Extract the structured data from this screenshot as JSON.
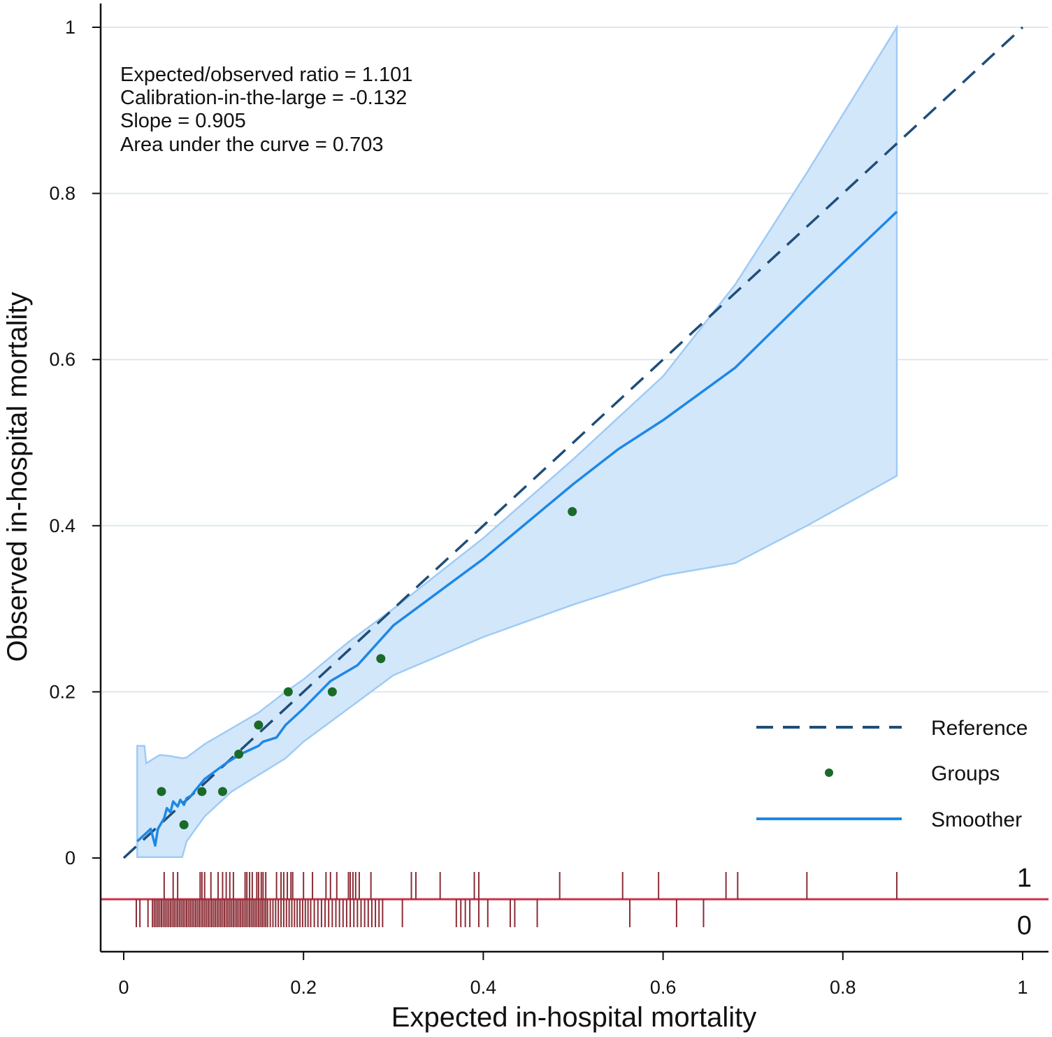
{
  "chart_data": {
    "type": "scatter",
    "xlabel": "Expected in-hospital mortality",
    "ylabel": "Observed in-hospital mortality",
    "xlim": [
      0,
      1
    ],
    "ylim": [
      0,
      1
    ],
    "x_ticks": [
      "0",
      "0.2",
      "0.4",
      "0.6",
      "0.8",
      "1"
    ],
    "y_ticks": [
      "0",
      "0.2",
      "0.4",
      "0.6",
      "0.8",
      "1"
    ],
    "grid": "horizontal",
    "annotations": [
      "Expected/observed ratio = 1.101",
      "Calibration-in-the-large = -0.132",
      "Slope = 0.905",
      "Area under the curve = 0.703"
    ],
    "legend": {
      "position": "bottom-right",
      "entries": [
        {
          "label": "Reference",
          "style": "dashed",
          "color": "#1f4e79"
        },
        {
          "label": "Groups",
          "style": "point",
          "color": "#1a6b2a"
        },
        {
          "label": "Smoother",
          "style": "line",
          "color": "#1e88e5"
        }
      ]
    },
    "reference_line": {
      "x": [
        0,
        1
      ],
      "y": [
        0,
        1
      ],
      "color": "#1f4e79"
    },
    "groups": {
      "x": [
        0.042,
        0.067,
        0.087,
        0.11,
        0.128,
        0.15,
        0.183,
        0.232,
        0.286,
        0.499
      ],
      "y": [
        0.08,
        0.04,
        0.08,
        0.08,
        0.125,
        0.16,
        0.2,
        0.2,
        0.24,
        0.417
      ],
      "color": "#1a6b2a"
    },
    "smoother": {
      "x": [
        0.015,
        0.025,
        0.03,
        0.035,
        0.038,
        0.045,
        0.048,
        0.052,
        0.055,
        0.06,
        0.063,
        0.067,
        0.07,
        0.075,
        0.08,
        0.09,
        0.1,
        0.115,
        0.13,
        0.15,
        0.155,
        0.17,
        0.18,
        0.2,
        0.23,
        0.26,
        0.3,
        0.35,
        0.4,
        0.45,
        0.5,
        0.55,
        0.6,
        0.68,
        0.76,
        0.86
      ],
      "y": [
        0.02,
        0.03,
        0.035,
        0.015,
        0.035,
        0.048,
        0.06,
        0.055,
        0.068,
        0.062,
        0.07,
        0.064,
        0.072,
        0.075,
        0.082,
        0.095,
        0.103,
        0.115,
        0.125,
        0.135,
        0.14,
        0.145,
        0.16,
        0.18,
        0.213,
        0.232,
        0.28,
        0.32,
        0.36,
        0.405,
        0.45,
        0.492,
        0.527,
        0.59,
        0.675,
        0.778
      ],
      "color": "#1e88e5"
    },
    "ci_band": {
      "x": [
        0.015,
        0.023,
        0.025,
        0.04,
        0.05,
        0.065,
        0.07,
        0.09,
        0.12,
        0.15,
        0.18,
        0.2,
        0.25,
        0.3,
        0.4,
        0.5,
        0.6,
        0.68,
        0.76,
        0.86
      ],
      "upper": [
        0.135,
        0.135,
        0.114,
        0.124,
        0.123,
        0.12,
        0.121,
        0.137,
        0.156,
        0.175,
        0.2,
        0.215,
        0.26,
        0.3,
        0.385,
        0.48,
        0.58,
        0.69,
        0.825,
        1.0
      ],
      "lower": [
        0.001,
        0.001,
        0.001,
        0.001,
        0.001,
        0.001,
        0.02,
        0.05,
        0.08,
        0.1,
        0.12,
        0.14,
        0.18,
        0.22,
        0.266,
        0.305,
        0.34,
        0.355,
        0.4,
        0.46
      ],
      "color": "#9fcbf5"
    },
    "rug": {
      "baseline_color": "#c8324a",
      "tick_color": "#8b2d36",
      "top_label": "1",
      "bottom_label": "0",
      "events_1": [
        0.045,
        0.055,
        0.06,
        0.085,
        0.087,
        0.09,
        0.097,
        0.105,
        0.11,
        0.114,
        0.118,
        0.122,
        0.135,
        0.137,
        0.14,
        0.143,
        0.148,
        0.15,
        0.153,
        0.155,
        0.158,
        0.17,
        0.175,
        0.178,
        0.182,
        0.186,
        0.188,
        0.2,
        0.21,
        0.225,
        0.23,
        0.237,
        0.25,
        0.252,
        0.255,
        0.258,
        0.262,
        0.275,
        0.32,
        0.325,
        0.352,
        0.39,
        0.395,
        0.485,
        0.555,
        0.595,
        0.67,
        0.683,
        0.76,
        0.86
      ],
      "events_0": [
        0.014,
        0.018,
        0.027,
        0.032,
        0.034,
        0.036,
        0.038,
        0.04,
        0.042,
        0.044,
        0.046,
        0.048,
        0.05,
        0.052,
        0.054,
        0.056,
        0.058,
        0.06,
        0.062,
        0.064,
        0.066,
        0.068,
        0.07,
        0.072,
        0.074,
        0.076,
        0.078,
        0.08,
        0.082,
        0.084,
        0.086,
        0.088,
        0.09,
        0.092,
        0.094,
        0.096,
        0.098,
        0.1,
        0.102,
        0.104,
        0.106,
        0.108,
        0.11,
        0.112,
        0.114,
        0.116,
        0.118,
        0.12,
        0.122,
        0.124,
        0.126,
        0.128,
        0.13,
        0.132,
        0.134,
        0.136,
        0.138,
        0.14,
        0.142,
        0.144,
        0.146,
        0.148,
        0.15,
        0.152,
        0.154,
        0.156,
        0.158,
        0.16,
        0.163,
        0.166,
        0.169,
        0.172,
        0.175,
        0.178,
        0.181,
        0.184,
        0.187,
        0.19,
        0.193,
        0.196,
        0.199,
        0.202,
        0.205,
        0.208,
        0.212,
        0.216,
        0.22,
        0.224,
        0.228,
        0.232,
        0.236,
        0.24,
        0.244,
        0.248,
        0.252,
        0.256,
        0.26,
        0.264,
        0.268,
        0.272,
        0.276,
        0.28,
        0.284,
        0.288,
        0.31,
        0.37,
        0.375,
        0.38,
        0.385,
        0.395,
        0.405,
        0.43,
        0.435,
        0.46,
        0.563,
        0.615,
        0.645
      ]
    }
  }
}
